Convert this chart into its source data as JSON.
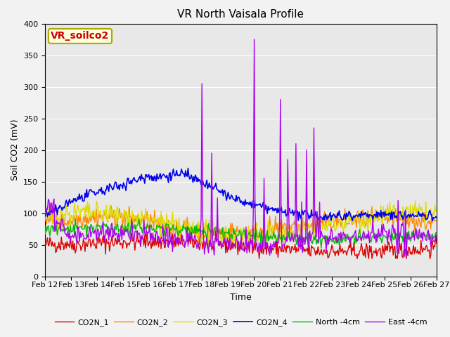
{
  "title": "VR North Vaisala Profile",
  "xlabel": "Time",
  "ylabel": "Soil CO2 (mV)",
  "annotation": "VR_soilco2",
  "annotation_color": "#cc0000",
  "annotation_bg": "#ffffdd",
  "annotation_border": "#aaa800",
  "ylim": [
    0,
    400
  ],
  "yticks": [
    0,
    50,
    100,
    150,
    200,
    250,
    300,
    350,
    400
  ],
  "xtick_labels": [
    "Feb 12",
    "Feb 13",
    "Feb 14",
    "Feb 15",
    "Feb 16",
    "Feb 17",
    "Feb 18",
    "Feb 19",
    "Feb 20",
    "Feb 21",
    "Feb 22",
    "Feb 23",
    "Feb 24",
    "Feb 25",
    "Feb 26",
    "Feb 27"
  ],
  "series": {
    "CO2N_1": {
      "color": "#dd0000",
      "linewidth": 1.0
    },
    "CO2N_2": {
      "color": "#ff8800",
      "linewidth": 1.0
    },
    "CO2N_3": {
      "color": "#dddd00",
      "linewidth": 1.0
    },
    "CO2N_4": {
      "color": "#0000ee",
      "linewidth": 1.2
    },
    "North -4cm": {
      "color": "#00bb00",
      "linewidth": 1.0
    },
    "East -4cm": {
      "color": "#aa00ee",
      "linewidth": 1.0
    }
  },
  "background_color": "#e8e8e8",
  "fig_color": "#f2f2f2",
  "grid_color": "#ffffff",
  "title_fontsize": 11,
  "axis_fontsize": 9,
  "tick_fontsize": 8,
  "legend_fontsize": 8,
  "n_points": 480
}
